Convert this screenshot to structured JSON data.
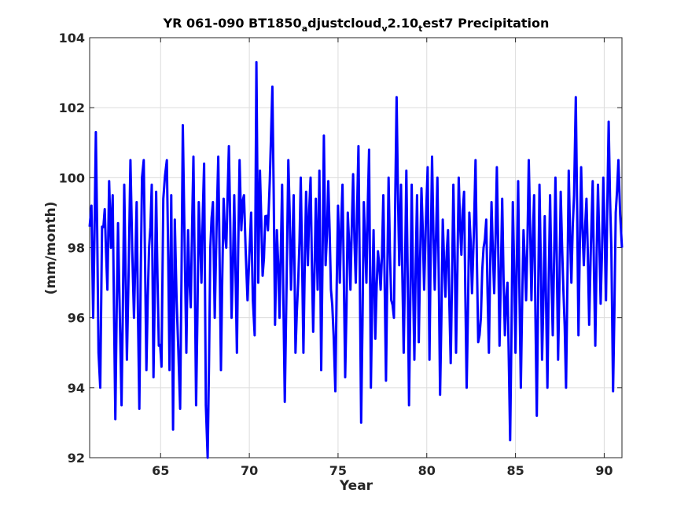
{
  "chart_data": {
    "type": "line",
    "title": {
      "parts": [
        {
          "text": "YR 061-090 BT1850",
          "sub": false
        },
        {
          "text": "a",
          "sub": true
        },
        {
          "text": "djustcloud",
          "sub": false
        },
        {
          "text": "v",
          "sub": true
        },
        {
          "text": "2.10",
          "sub": false
        },
        {
          "text": "t",
          "sub": true
        },
        {
          "text": "est7 Precipitation",
          "sub": false
        }
      ]
    },
    "xlabel": "Year",
    "ylabel": "(mm/month)",
    "xlim": [
      61,
      91
    ],
    "ylim": [
      92,
      104
    ],
    "xticks": [
      65,
      70,
      75,
      80,
      85,
      90
    ],
    "yticks": [
      92,
      94,
      96,
      98,
      100,
      102,
      104
    ],
    "grid": true,
    "series": [
      {
        "color": "#0000ff",
        "keypoints": [
          [
            61.0,
            98.6
          ],
          [
            61.1,
            99.2
          ],
          [
            61.2,
            96.0
          ],
          [
            61.35,
            101.3
          ],
          [
            61.5,
            95.0
          ],
          [
            61.6,
            94.0
          ],
          [
            61.7,
            98.6
          ],
          [
            61.85,
            99.1
          ],
          [
            62.0,
            96.8
          ],
          [
            62.1,
            99.9
          ],
          [
            62.2,
            98.0
          ],
          [
            62.3,
            99.5
          ],
          [
            62.45,
            93.1
          ],
          [
            62.6,
            98.7
          ],
          [
            62.8,
            93.5
          ],
          [
            62.95,
            99.8
          ],
          [
            63.1,
            94.8
          ],
          [
            63.3,
            100.5
          ],
          [
            63.5,
            96.0
          ],
          [
            63.65,
            99.3
          ],
          [
            63.8,
            93.4
          ],
          [
            63.95,
            100.0
          ],
          [
            64.05,
            100.5
          ],
          [
            64.2,
            94.5
          ],
          [
            64.35,
            98.0
          ],
          [
            64.5,
            99.8
          ],
          [
            64.6,
            94.3
          ],
          [
            64.75,
            99.6
          ],
          [
            64.9,
            95.2
          ],
          [
            65.05,
            94.6
          ],
          [
            65.15,
            99.4
          ],
          [
            65.35,
            100.5
          ],
          [
            65.5,
            94.5
          ],
          [
            65.6,
            99.5
          ],
          [
            65.7,
            92.8
          ],
          [
            65.8,
            98.8
          ],
          [
            65.9,
            96.5
          ],
          [
            66.1,
            93.4
          ],
          [
            66.25,
            101.5
          ],
          [
            66.45,
            95.0
          ],
          [
            66.55,
            98.5
          ],
          [
            66.7,
            96.3
          ],
          [
            66.85,
            100.6
          ],
          [
            67.0,
            93.5
          ],
          [
            67.15,
            99.3
          ],
          [
            67.3,
            97.0
          ],
          [
            67.45,
            100.4
          ],
          [
            67.55,
            93.5
          ],
          [
            67.65,
            92.0
          ],
          [
            67.8,
            98.0
          ],
          [
            67.95,
            99.3
          ],
          [
            68.05,
            96.0
          ],
          [
            68.25,
            100.6
          ],
          [
            68.4,
            94.5
          ],
          [
            68.55,
            99.4
          ],
          [
            68.7,
            98.0
          ],
          [
            68.85,
            100.9
          ],
          [
            69.0,
            96.0
          ],
          [
            69.15,
            99.5
          ],
          [
            69.3,
            95.0
          ],
          [
            69.45,
            100.5
          ],
          [
            69.55,
            98.5
          ],
          [
            69.7,
            99.5
          ],
          [
            69.9,
            96.5
          ],
          [
            70.1,
            99.0
          ],
          [
            70.2,
            96.5
          ],
          [
            70.3,
            95.5
          ],
          [
            70.4,
            103.3
          ],
          [
            70.5,
            97.0
          ],
          [
            70.6,
            100.2
          ],
          [
            70.75,
            97.2
          ],
          [
            70.9,
            98.9
          ],
          [
            71.05,
            98.5
          ],
          [
            71.15,
            99.9
          ],
          [
            71.3,
            102.6
          ],
          [
            71.45,
            95.8
          ],
          [
            71.55,
            98.5
          ],
          [
            71.7,
            96.0
          ],
          [
            71.85,
            99.8
          ],
          [
            72.0,
            93.6
          ],
          [
            72.2,
            100.5
          ],
          [
            72.35,
            96.8
          ],
          [
            72.5,
            99.5
          ],
          [
            72.6,
            95.0
          ],
          [
            72.75,
            97.0
          ],
          [
            72.9,
            100.0
          ],
          [
            73.05,
            95.0
          ],
          [
            73.2,
            99.6
          ],
          [
            73.3,
            97.5
          ],
          [
            73.45,
            100.0
          ],
          [
            73.6,
            95.6
          ],
          [
            73.75,
            99.4
          ],
          [
            73.85,
            96.8
          ],
          [
            73.95,
            100.2
          ],
          [
            74.05,
            94.5
          ],
          [
            74.2,
            101.2
          ],
          [
            74.3,
            97.5
          ],
          [
            74.45,
            99.9
          ],
          [
            74.6,
            96.8
          ],
          [
            74.75,
            95.5
          ],
          [
            74.85,
            93.9
          ],
          [
            75.0,
            99.2
          ],
          [
            75.1,
            97.0
          ],
          [
            75.25,
            99.8
          ],
          [
            75.4,
            94.3
          ],
          [
            75.55,
            99.0
          ],
          [
            75.7,
            96.8
          ],
          [
            75.85,
            100.1
          ],
          [
            76.0,
            97.0
          ],
          [
            76.15,
            100.9
          ],
          [
            76.3,
            93.0
          ],
          [
            76.45,
            99.3
          ],
          [
            76.6,
            97.0
          ],
          [
            76.75,
            100.8
          ],
          [
            76.85,
            94.0
          ],
          [
            77.0,
            98.5
          ],
          [
            77.1,
            95.4
          ],
          [
            77.25,
            97.9
          ],
          [
            77.4,
            96.8
          ],
          [
            77.55,
            99.5
          ],
          [
            77.7,
            94.2
          ],
          [
            77.85,
            100.0
          ],
          [
            78.0,
            96.5
          ],
          [
            78.15,
            96.0
          ],
          [
            78.3,
            102.3
          ],
          [
            78.45,
            97.5
          ],
          [
            78.55,
            99.8
          ],
          [
            78.7,
            95.0
          ],
          [
            78.85,
            100.2
          ],
          [
            79.0,
            93.5
          ],
          [
            79.15,
            99.8
          ],
          [
            79.3,
            94.8
          ],
          [
            79.45,
            99.5
          ],
          [
            79.55,
            95.3
          ],
          [
            79.7,
            99.7
          ],
          [
            79.85,
            96.8
          ],
          [
            80.05,
            100.3
          ],
          [
            80.15,
            94.8
          ],
          [
            80.3,
            100.6
          ],
          [
            80.45,
            96.8
          ],
          [
            80.6,
            100.0
          ],
          [
            80.75,
            93.8
          ],
          [
            80.9,
            98.8
          ],
          [
            81.05,
            96.6
          ],
          [
            81.2,
            98.5
          ],
          [
            81.35,
            94.7
          ],
          [
            81.5,
            99.8
          ],
          [
            81.65,
            95.0
          ],
          [
            81.8,
            100.0
          ],
          [
            81.95,
            97.8
          ],
          [
            82.1,
            99.6
          ],
          [
            82.25,
            94.0
          ],
          [
            82.4,
            99.0
          ],
          [
            82.55,
            96.7
          ],
          [
            82.75,
            100.5
          ],
          [
            82.9,
            95.3
          ],
          [
            83.05,
            96.0
          ],
          [
            83.2,
            98.0
          ],
          [
            83.35,
            98.8
          ],
          [
            83.5,
            95.0
          ],
          [
            83.65,
            99.3
          ],
          [
            83.8,
            96.7
          ],
          [
            83.95,
            100.3
          ],
          [
            84.1,
            95.2
          ],
          [
            84.25,
            99.4
          ],
          [
            84.4,
            95.5
          ],
          [
            84.55,
            97.0
          ],
          [
            84.7,
            92.5
          ],
          [
            84.85,
            99.3
          ],
          [
            85.0,
            95.0
          ],
          [
            85.15,
            99.9
          ],
          [
            85.3,
            94.0
          ],
          [
            85.45,
            98.5
          ],
          [
            85.6,
            96.5
          ],
          [
            85.75,
            100.5
          ],
          [
            85.9,
            96.5
          ],
          [
            86.05,
            99.5
          ],
          [
            86.2,
            93.2
          ],
          [
            86.35,
            99.8
          ],
          [
            86.5,
            94.8
          ],
          [
            86.65,
            98.9
          ],
          [
            86.8,
            94.0
          ],
          [
            86.95,
            99.5
          ],
          [
            87.1,
            95.5
          ],
          [
            87.25,
            100.0
          ],
          [
            87.4,
            94.8
          ],
          [
            87.55,
            99.6
          ],
          [
            87.7,
            96.8
          ],
          [
            87.85,
            94.0
          ],
          [
            88.0,
            100.2
          ],
          [
            88.15,
            97.0
          ],
          [
            88.3,
            99.5
          ],
          [
            88.4,
            102.3
          ],
          [
            88.55,
            95.5
          ],
          [
            88.7,
            100.3
          ],
          [
            88.85,
            97.5
          ],
          [
            89.0,
            99.4
          ],
          [
            89.15,
            95.8
          ],
          [
            89.35,
            99.9
          ],
          [
            89.5,
            95.2
          ],
          [
            89.65,
            99.8
          ],
          [
            89.8,
            96.4
          ],
          [
            89.95,
            100.0
          ],
          [
            90.1,
            96.5
          ],
          [
            90.25,
            101.6
          ],
          [
            90.4,
            98.0
          ],
          [
            90.5,
            93.9
          ],
          [
            90.65,
            99.0
          ],
          [
            90.8,
            100.5
          ],
          [
            91.0,
            98.0
          ]
        ]
      }
    ]
  }
}
